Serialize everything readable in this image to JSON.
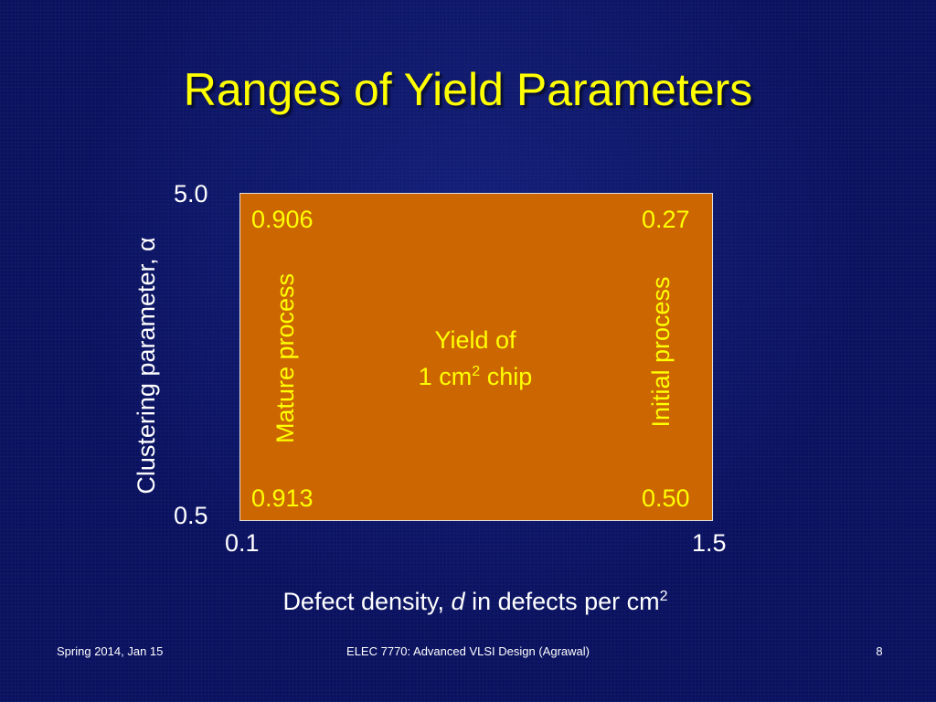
{
  "slide": {
    "title": "Ranges of Yield Parameters",
    "background_color": "#0a1260",
    "accent_color": "#ffff00",
    "box_color": "#cc6600"
  },
  "diagram": {
    "corners": {
      "top_left": "0.906",
      "top_right": "0.27",
      "bottom_left": "0.913",
      "bottom_right": "0.50"
    },
    "left_label": "Mature process",
    "right_label": "Initial process",
    "center_line1": "Yield of",
    "center_line2_prefix": "1 cm",
    "center_line2_sup": "2",
    "center_line2_suffix": " chip"
  },
  "axes": {
    "y_label": "Clustering parameter, α",
    "y_top": "5.0",
    "y_bottom": "0.5",
    "x_left": "0.1",
    "x_right": "1.5",
    "x_label_prefix": "Defect density, ",
    "x_label_var": "d",
    "x_label_suffix": " in defects per cm",
    "x_label_sup": "2"
  },
  "footer": {
    "left": "Spring 2014, Jan 15",
    "center": "ELEC 7770: Advanced VLSI Design (Agrawal)",
    "page_number": "8"
  }
}
